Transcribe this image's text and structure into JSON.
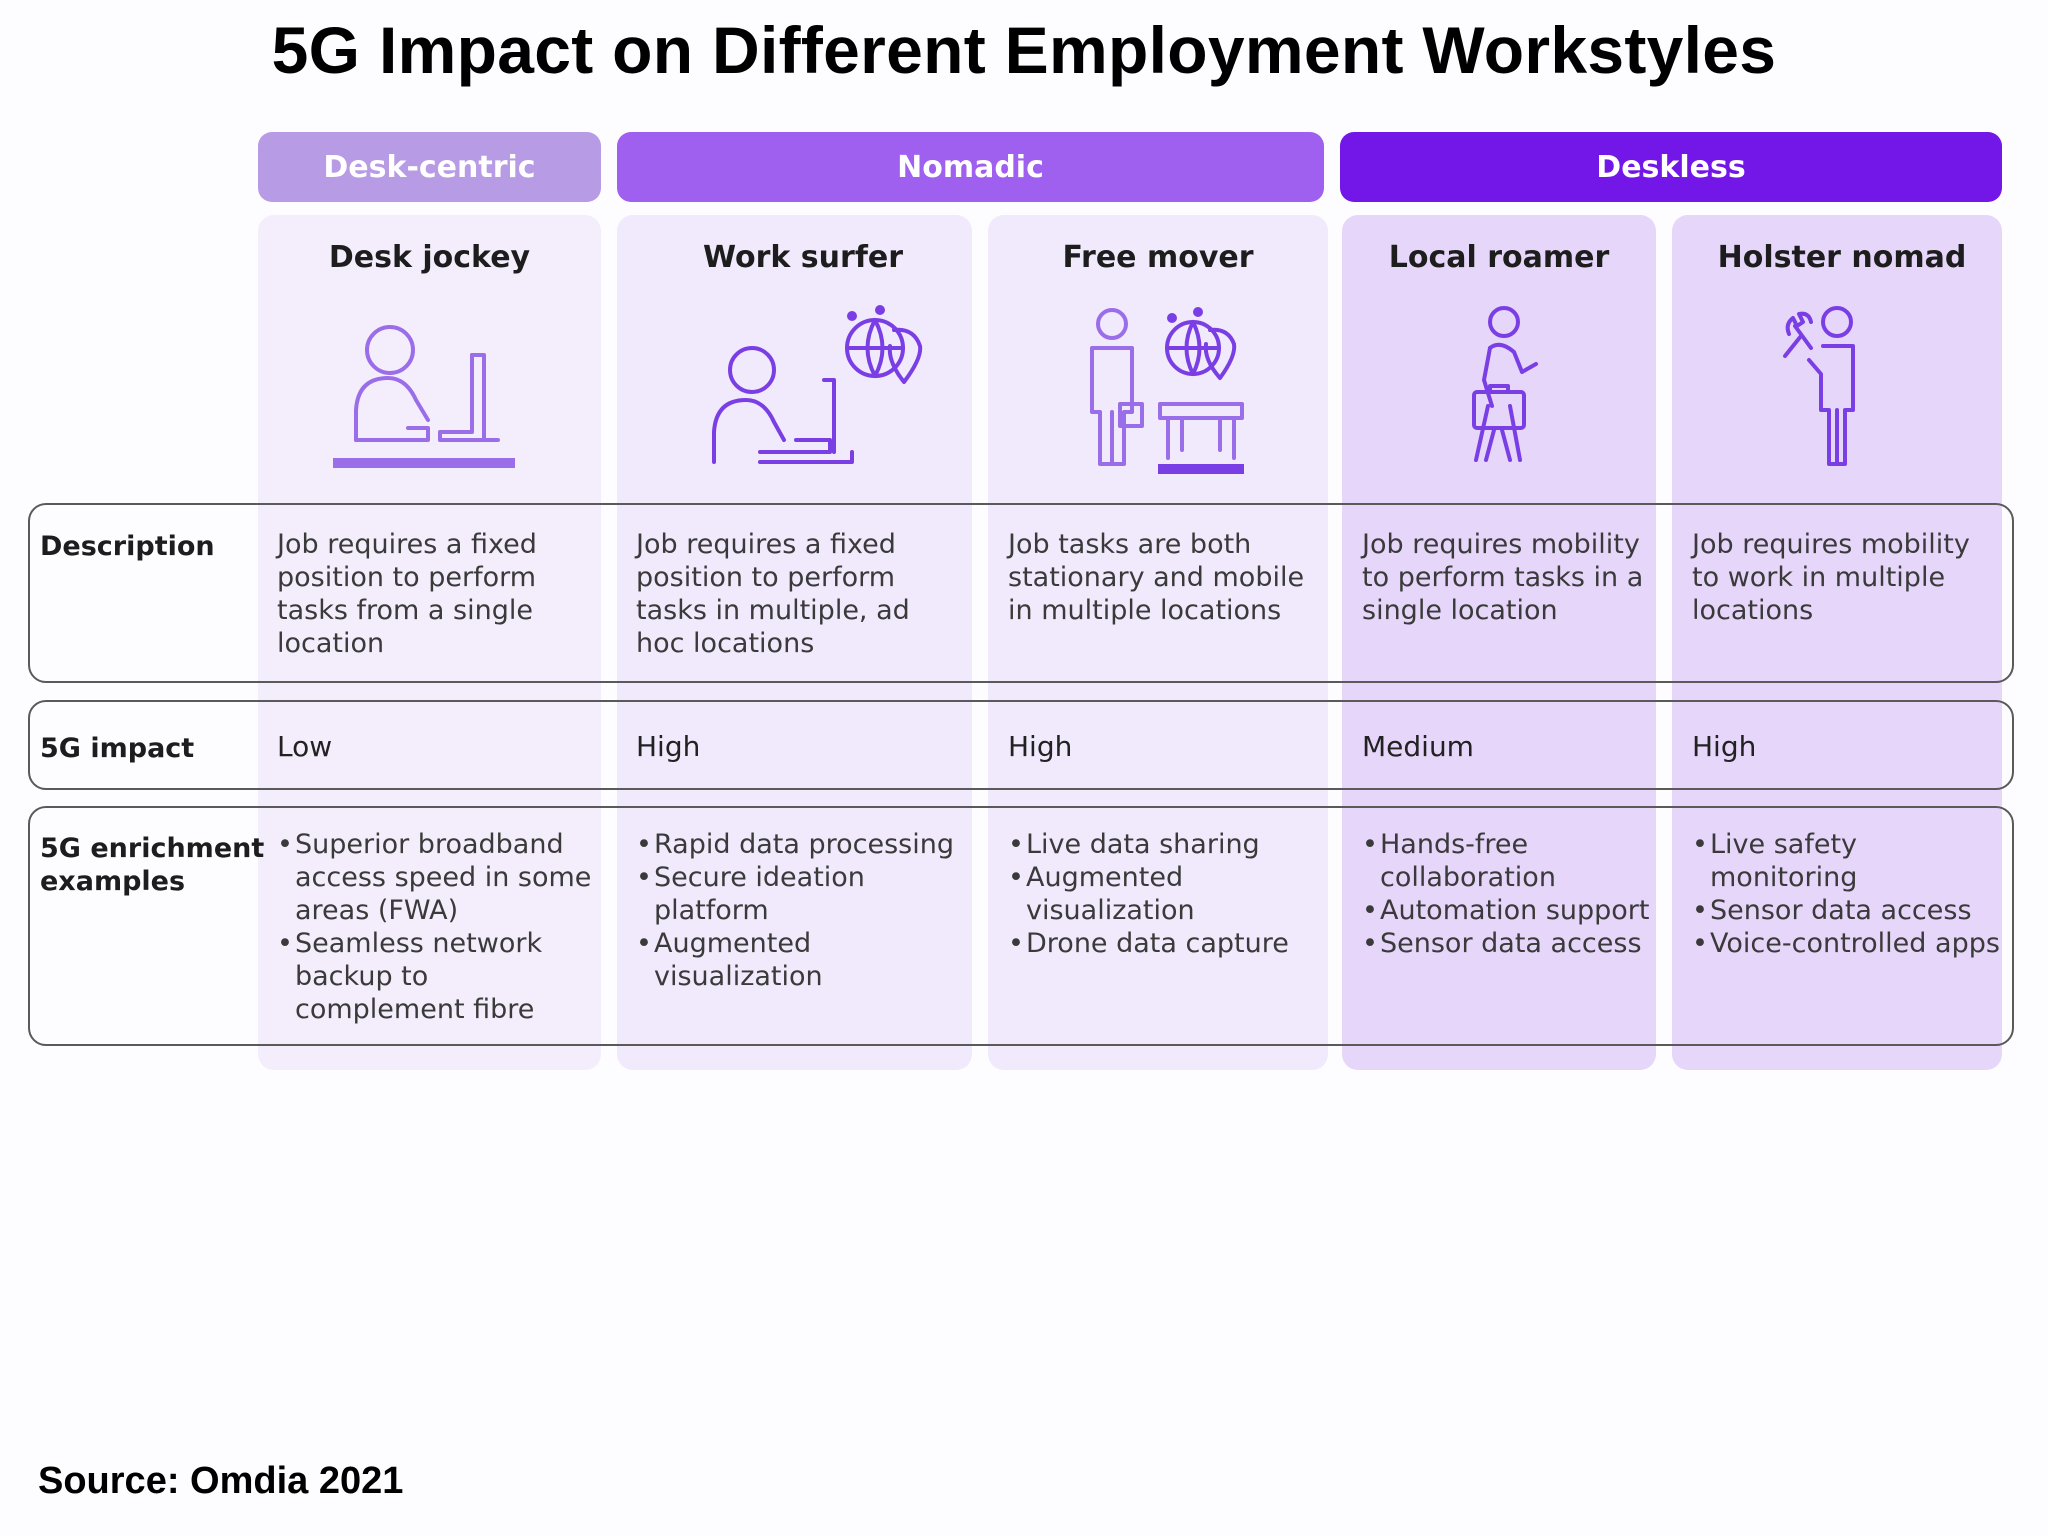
{
  "title": "5G Impact on Different Employment Workstyles",
  "groups": [
    {
      "label": "Desk-centric",
      "color": "#b89be5"
    },
    {
      "label": "Nomadic",
      "color": "#9f60ef"
    },
    {
      "label": "Deskless",
      "color": "#7317e8"
    }
  ],
  "row_labels": {
    "description": "Description",
    "impact": "5G impact",
    "enrichment_line1": "5G enrichment",
    "enrichment_line2": "examples"
  },
  "columns": [
    {
      "name": "Desk jockey",
      "icon": "person-at-desk-icon",
      "description": [
        "Job requires a fixed",
        "position to perform",
        "tasks from a single",
        "location"
      ],
      "impact": "Low",
      "examples": [
        "Superior broadband access speed in some areas (FWA)",
        "Seamless network backup to complement fibre"
      ]
    },
    {
      "name": "Work surfer",
      "icon": "person-at-laptop-globe-icon",
      "description": [
        "Job requires a fixed",
        "position to perform",
        "tasks in multiple, ad",
        "hoc locations"
      ],
      "impact": "High",
      "examples": [
        "Rapid data processing",
        "Secure ideation platform",
        "Augmented visualization"
      ]
    },
    {
      "name": "Free mover",
      "icon": "person-standing-table-globe-icon",
      "description": [
        "Job tasks are both",
        "stationary and mobile",
        "in multiple locations"
      ],
      "impact": "High",
      "examples": [
        "Live data sharing",
        "Augmented visualization",
        "Drone data capture"
      ]
    },
    {
      "name": "Local roamer",
      "icon": "person-with-briefcase-icon",
      "description": [
        "Job requires mobility",
        "to perform tasks in a",
        "single location"
      ],
      "impact": "Medium",
      "examples": [
        "Hands-free collaboration",
        "Automation support",
        "Sensor data access"
      ]
    },
    {
      "name": "Holster nomad",
      "icon": "person-with-wrench-icon",
      "description": [
        "Job requires mobility",
        "to work in multiple",
        "locations"
      ],
      "impact": "High",
      "examples": [
        "Live safety monitoring",
        "Sensor data access",
        "Voice-controlled apps"
      ]
    }
  ],
  "source": "Source: Omdia 2021"
}
